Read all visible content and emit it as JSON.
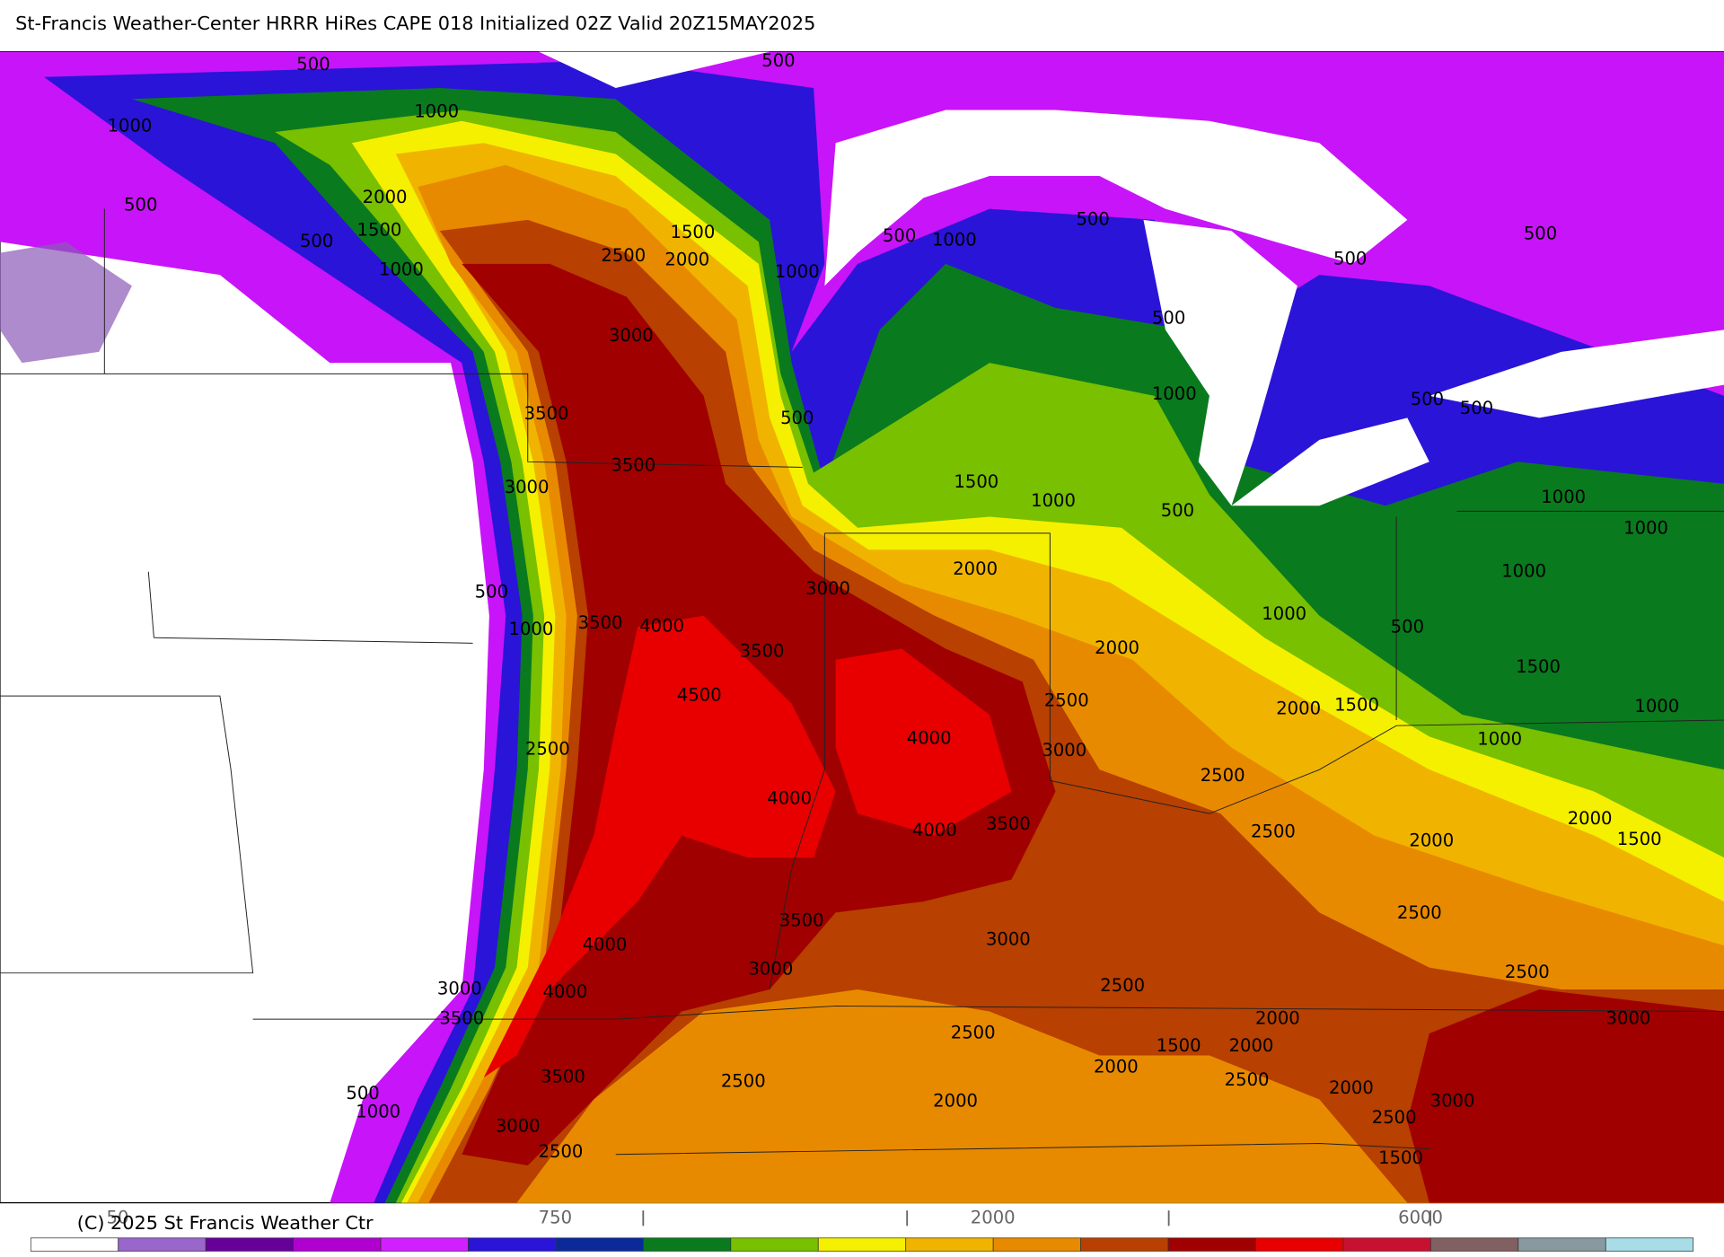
{
  "title": "St-Francis Weather-Center HRRR HiRes CAPE  018 Initialized  02Z Valid 20Z15MAY2025",
  "copyright": "(C) 2025 St Francis Weather Ctr",
  "legend": {
    "labels": [
      "50",
      "750",
      "2000",
      "6000"
    ],
    "colors": [
      "#ffffff",
      "#9966cc",
      "#660099",
      "#b000d0",
      "#d020ff",
      "#2a14d8",
      "#0a2a9a",
      "#0a7a1e",
      "#78c000",
      "#f5f000",
      "#f0b400",
      "#e88a00",
      "#b84000",
      "#a00000",
      "#e80000",
      "#c81030",
      "#806060",
      "#8899a0",
      "#a8dde8"
    ]
  },
  "contour_labels": [
    "500",
    "500",
    "1000",
    "1000",
    "500",
    "500",
    "2000",
    "1500",
    "1000",
    "2500",
    "1500",
    "2000",
    "1000",
    "3000",
    "500",
    "1000",
    "500",
    "500",
    "500",
    "500",
    "1000",
    "500",
    "3500",
    "3500",
    "3000",
    "1500",
    "1000",
    "500",
    "500",
    "500",
    "1000",
    "1000",
    "1000",
    "2000",
    "3000",
    "500",
    "1000",
    "3500",
    "4000",
    "3500",
    "1000",
    "500",
    "2000",
    "1500",
    "4500",
    "2500",
    "2000",
    "1500",
    "1000",
    "4000",
    "3000",
    "1000",
    "2500",
    "2500",
    "4000",
    "3500",
    "4000",
    "2500",
    "2000",
    "2000",
    "1500",
    "2500",
    "3500",
    "3000",
    "4000",
    "3000",
    "2500",
    "4000",
    "3000",
    "2500",
    "3500",
    "2000",
    "3000",
    "2500",
    "1500",
    "2000",
    "2000",
    "3500",
    "2500",
    "2500",
    "2000",
    "500",
    "1000",
    "2000",
    "3000",
    "2500",
    "3000",
    "1500",
    "2500"
  ]
}
